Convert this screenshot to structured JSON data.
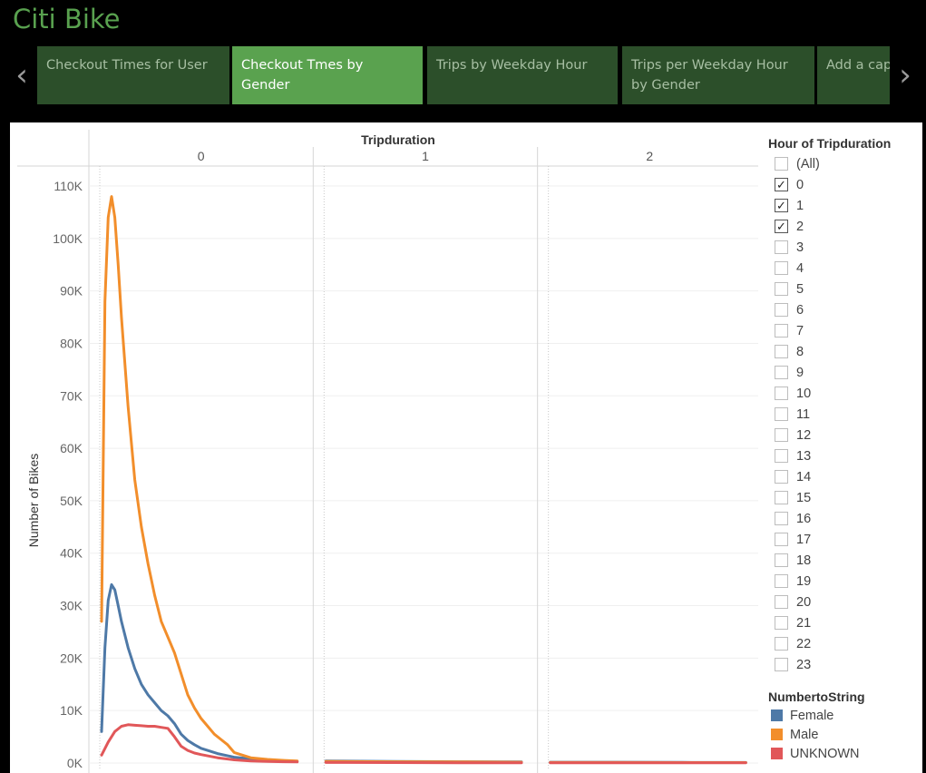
{
  "app": {
    "title": "Citi Bike"
  },
  "tabs": [
    {
      "label": "Checkout Times for User",
      "active": false
    },
    {
      "label": "Checkout Tmes by Gender",
      "active": true
    },
    {
      "label": "Trips by Weekday Hour",
      "active": false
    },
    {
      "label": "Trips per Weekday Hour by Gender",
      "active": false
    },
    {
      "label": "Add a capt",
      "active": false
    }
  ],
  "nav": {
    "prev_icon": "chevron-left-icon",
    "next_icon": "chevron-right-icon"
  },
  "filter": {
    "title": "Hour of Tripduration",
    "options": [
      {
        "label": "(All)",
        "checked": false
      },
      {
        "label": "0",
        "checked": true
      },
      {
        "label": "1",
        "checked": true
      },
      {
        "label": "2",
        "checked": true
      },
      {
        "label": "3",
        "checked": false
      },
      {
        "label": "4",
        "checked": false
      },
      {
        "label": "5",
        "checked": false
      },
      {
        "label": "6",
        "checked": false
      },
      {
        "label": "7",
        "checked": false
      },
      {
        "label": "8",
        "checked": false
      },
      {
        "label": "9",
        "checked": false
      },
      {
        "label": "10",
        "checked": false
      },
      {
        "label": "11",
        "checked": false
      },
      {
        "label": "12",
        "checked": false
      },
      {
        "label": "13",
        "checked": false
      },
      {
        "label": "14",
        "checked": false
      },
      {
        "label": "15",
        "checked": false
      },
      {
        "label": "16",
        "checked": false
      },
      {
        "label": "17",
        "checked": false
      },
      {
        "label": "18",
        "checked": false
      },
      {
        "label": "19",
        "checked": false
      },
      {
        "label": "20",
        "checked": false
      },
      {
        "label": "21",
        "checked": false
      },
      {
        "label": "22",
        "checked": false
      },
      {
        "label": "23",
        "checked": false
      }
    ]
  },
  "legend": {
    "title": "NumbertoString",
    "items": [
      {
        "label": "Female",
        "color": "#4e79a7"
      },
      {
        "label": "Male",
        "color": "#f28e2b"
      },
      {
        "label": "UNKNOWN",
        "color": "#e15759"
      }
    ]
  },
  "chart_data": {
    "type": "line",
    "column_header": "Tripduration",
    "panels": [
      "0",
      "1",
      "2"
    ],
    "ylabel": "Number of Bikes",
    "ylim": [
      0,
      110000
    ],
    "yticks": [
      0,
      10000,
      20000,
      30000,
      40000,
      50000,
      60000,
      70000,
      80000,
      90000,
      100000,
      110000
    ],
    "ytick_labels": [
      "0K",
      "10K",
      "20K",
      "30K",
      "40K",
      "50K",
      "60K",
      "70K",
      "80K",
      "90K",
      "100K",
      "110K"
    ],
    "xlim": [
      0,
      60
    ],
    "grid": true,
    "series": [
      {
        "name": "Female",
        "color": "#4e79a7",
        "panels": [
          {
            "x": [
              0,
              1,
              2,
              3,
              4,
              5,
              6,
              8,
              10,
              12,
              14,
              16,
              18,
              20,
              22,
              24,
              26,
              28,
              30,
              35,
              40,
              45,
              50,
              55,
              59
            ],
            "y": [
              6000,
              22000,
              31000,
              34000,
              33000,
              30000,
              27000,
              22000,
              18000,
              15000,
              13000,
              11500,
              10000,
              9000,
              7500,
              5500,
              4300,
              3500,
              2800,
              1800,
              1100,
              800,
              500,
              400,
              300
            ]
          },
          {
            "x": [
              0,
              20,
              40,
              59
            ],
            "y": [
              400,
              300,
              250,
              200
            ]
          },
          {
            "x": [
              0,
              20,
              40,
              59
            ],
            "y": [
              150,
              150,
              120,
              100
            ]
          }
        ]
      },
      {
        "name": "Male",
        "color": "#f28e2b",
        "panels": [
          {
            "x": [
              0,
              1,
              2,
              3,
              4,
              5,
              6,
              8,
              10,
              12,
              14,
              16,
              18,
              20,
              22,
              24,
              26,
              28,
              30,
              32,
              34,
              36,
              38,
              40,
              45,
              50,
              55,
              59
            ],
            "y": [
              27000,
              88000,
              104000,
              108000,
              104000,
              95000,
              85000,
              68000,
              54000,
              45000,
              38000,
              32000,
              27000,
              24000,
              21000,
              17000,
              13000,
              10500,
              8500,
              7000,
              5500,
              4500,
              3500,
              2000,
              1000,
              700,
              500,
              400
            ]
          },
          {
            "x": [
              0,
              20,
              40,
              59
            ],
            "y": [
              300,
              250,
              200,
              150
            ]
          },
          {
            "x": [
              0,
              20,
              40,
              59
            ],
            "y": [
              100,
              100,
              80,
              80
            ]
          }
        ]
      },
      {
        "name": "UNKNOWN",
        "color": "#e15759",
        "panels": [
          {
            "x": [
              0,
              2,
              4,
              6,
              8,
              10,
              12,
              14,
              16,
              18,
              20,
              22,
              24,
              26,
              28,
              30,
              35,
              40,
              45,
              50,
              55,
              59
            ],
            "y": [
              1500,
              4000,
              6000,
              7000,
              7300,
              7200,
              7100,
              7000,
              7000,
              6800,
              6600,
              5000,
              3200,
              2400,
              1900,
              1600,
              1000,
              600,
              400,
              300,
              250,
              200
            ]
          },
          {
            "x": [
              0,
              20,
              40,
              59
            ],
            "y": [
              100,
              80,
              60,
              50
            ]
          },
          {
            "x": [
              0,
              20,
              40,
              59
            ],
            "y": [
              50,
              40,
              30,
              30
            ]
          }
        ]
      }
    ]
  }
}
